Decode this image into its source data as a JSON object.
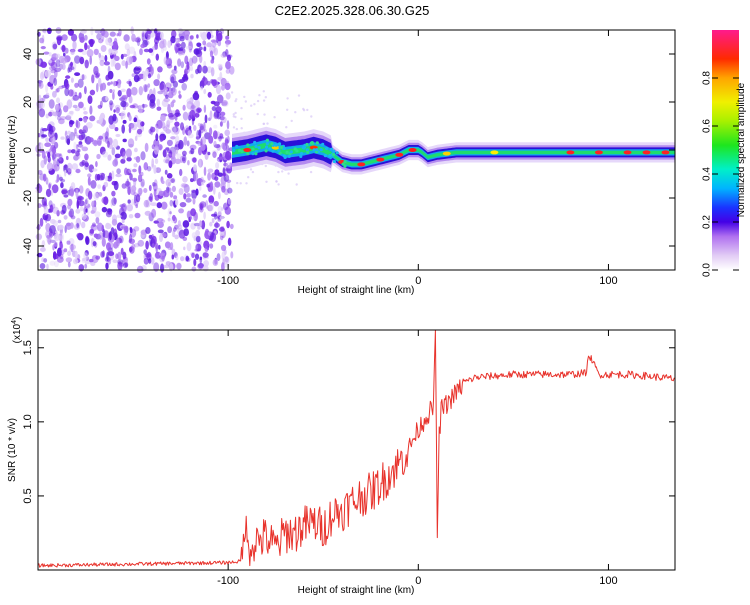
{
  "title": "C2E2.2025.328.06.30.G25",
  "chart_data": [
    {
      "type": "heatmap",
      "title": "C2E2.2025.328.06.30.G25",
      "xlabel": "Height of straight line (km)",
      "ylabel": "Frequency (Hz)",
      "xlim": [
        -200,
        135
      ],
      "ylim": [
        -50,
        50
      ],
      "x_ticks": [
        -100,
        0,
        100
      ],
      "x_tick_labels": [
        "-100",
        "0",
        "100"
      ],
      "y_ticks": [
        -40,
        -20,
        0,
        20,
        40
      ],
      "y_tick_labels": [
        "-40",
        "-20",
        "0",
        "20",
        "40"
      ],
      "colorbar": {
        "label": "Normalized spectral amplitude",
        "range": [
          0,
          1
        ],
        "ticks": [
          0.0,
          0.2,
          0.4,
          0.6,
          0.8
        ],
        "tick_labels": [
          "0.0",
          "0.2",
          "0.4",
          "0.6",
          "0.8"
        ]
      },
      "noise_region_x": [
        -200,
        -98
      ],
      "signal_track": {
        "x": [
          -98,
          -90,
          -85,
          -80,
          -75,
          -70,
          -60,
          -55,
          -50,
          -45,
          -40,
          -35,
          -30,
          -25,
          -20,
          -15,
          -10,
          -5,
          0,
          2,
          5,
          10,
          20,
          40,
          60,
          80,
          100,
          120,
          135
        ],
        "freq": [
          -1,
          0,
          1,
          2,
          1,
          -1,
          0,
          1,
          0,
          -2,
          -5,
          -6,
          -6,
          -5,
          -4,
          -3,
          -2,
          0,
          0,
          -1,
          -3,
          -2,
          -1,
          -1,
          -1,
          -1,
          -1,
          -1,
          -1
        ]
      }
    },
    {
      "type": "line",
      "title": "",
      "xlabel": "Height of straight line (km)",
      "ylabel": "SNR (10 * v/v)",
      "y_scale_label": "(x10",
      "y_scale_exp": "4",
      "y_scale_close": ")",
      "xlim": [
        -200,
        135
      ],
      "ylim": [
        0,
        1.62
      ],
      "x_ticks": [
        -100,
        0,
        100
      ],
      "x_tick_labels": [
        "-100",
        "0",
        "100"
      ],
      "y_ticks": [
        0.5,
        1.0,
        1.5
      ],
      "y_tick_labels": [
        "0.5",
        "1.0",
        "1.5"
      ],
      "series": [
        {
          "name": "SNR",
          "color": "#e8332c",
          "x": [
            -200,
            -150,
            -100,
            -93,
            -91,
            -90,
            -85,
            -80,
            -75,
            -70,
            -65,
            -60,
            -55,
            -50,
            -45,
            -40,
            -35,
            -30,
            -25,
            -20,
            -15,
            -10,
            -5,
            0,
            5,
            8,
            9,
            10,
            11,
            12,
            15,
            20,
            25,
            30,
            40,
            50,
            60,
            70,
            80,
            88,
            90,
            95,
            100,
            110,
            120,
            135
          ],
          "values": [
            0.03,
            0.04,
            0.05,
            0.06,
            0.35,
            0.15,
            0.2,
            0.22,
            0.15,
            0.25,
            0.25,
            0.3,
            0.32,
            0.28,
            0.38,
            0.4,
            0.45,
            0.5,
            0.52,
            0.58,
            0.65,
            0.72,
            0.82,
            0.95,
            1.05,
            1.1,
            1.6,
            0.25,
            0.9,
            1.08,
            1.12,
            1.2,
            1.27,
            1.3,
            1.31,
            1.32,
            1.32,
            1.32,
            1.32,
            1.33,
            1.45,
            1.32,
            1.32,
            1.32,
            1.31,
            1.29
          ]
        }
      ]
    }
  ]
}
